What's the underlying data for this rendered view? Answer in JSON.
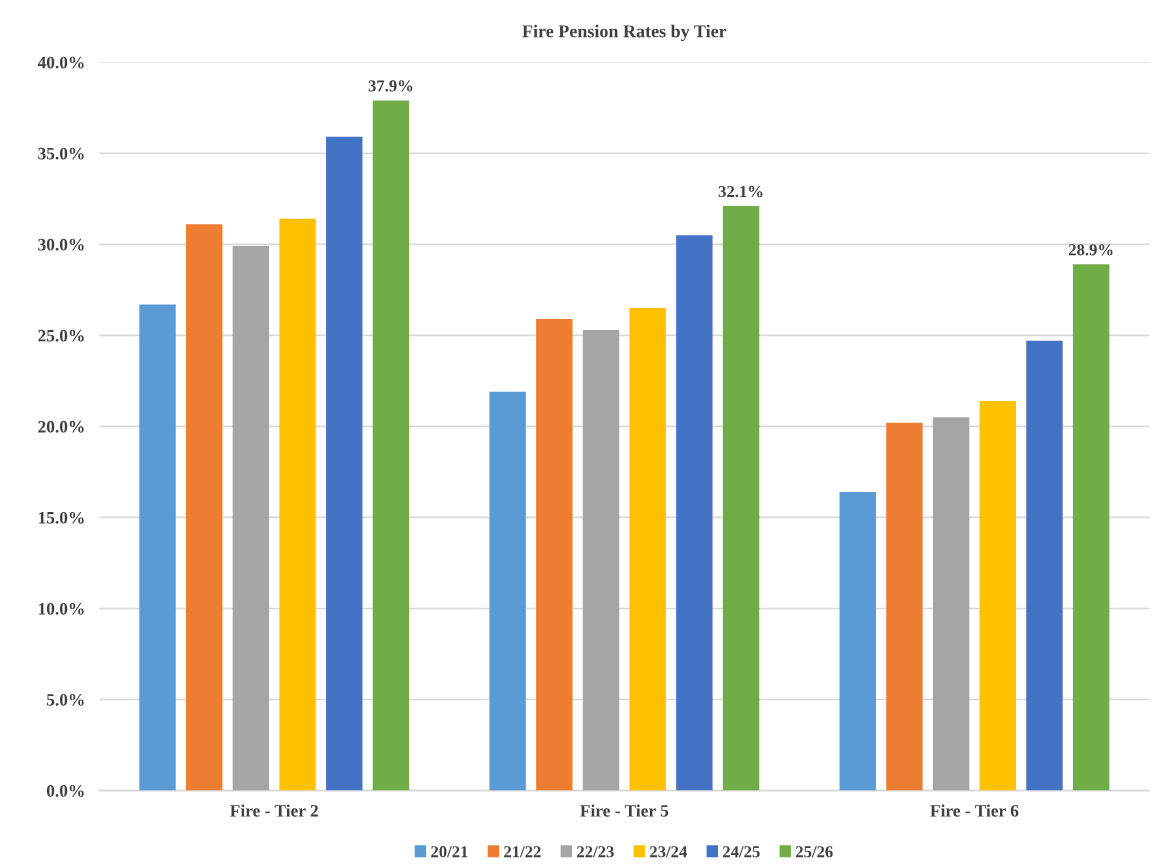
{
  "chart_data": {
    "type": "bar",
    "title": "Fire Pension Rates by Tier",
    "categories": [
      "Fire - Tier 2",
      "Fire - Tier 5",
      "Fire - Tier 6"
    ],
    "series": [
      {
        "name": "20/21",
        "color": "#5b9bd5",
        "values": [
          26.7,
          21.9,
          16.4
        ]
      },
      {
        "name": "21/22",
        "color": "#ed7d31",
        "values": [
          31.1,
          25.9,
          20.2
        ]
      },
      {
        "name": "22/23",
        "color": "#a5a5a5",
        "values": [
          29.9,
          25.3,
          20.5
        ]
      },
      {
        "name": "23/24",
        "color": "#ffc000",
        "values": [
          31.4,
          26.5,
          21.4
        ]
      },
      {
        "name": "24/25",
        "color": "#4472c4",
        "values": [
          35.9,
          30.5,
          24.7
        ]
      },
      {
        "name": "25/26",
        "color": "#70ad47",
        "values": [
          37.9,
          32.1,
          28.9
        ],
        "value_labels": [
          "37.9%",
          "32.1%",
          "28.9%"
        ]
      }
    ],
    "ylim": [
      0,
      40
    ],
    "yticks": [
      {
        "value": 0,
        "label": "0.0%"
      },
      {
        "value": 5,
        "label": "5.0%"
      },
      {
        "value": 10,
        "label": "10.0%"
      },
      {
        "value": 15,
        "label": "15.0%"
      },
      {
        "value": 20,
        "label": "20.0%"
      },
      {
        "value": 25,
        "label": "25.0%"
      },
      {
        "value": 30,
        "label": "30.0%"
      },
      {
        "value": 35,
        "label": "35.0%"
      },
      {
        "value": 40,
        "label": "40.0%"
      }
    ],
    "grid": "y",
    "legend": "bottom"
  }
}
